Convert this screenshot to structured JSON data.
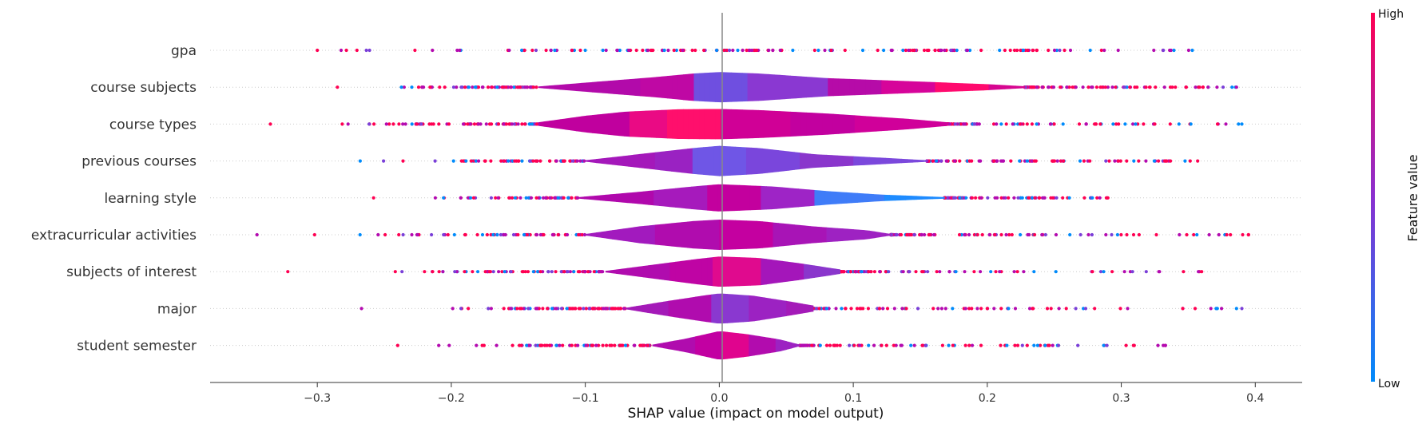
{
  "chart_data": {
    "type": "violin",
    "xlabel": "SHAP value (impact on model output)",
    "xlim": [
      -0.38,
      0.435
    ],
    "xticks": [
      -0.3,
      -0.2,
      -0.1,
      0.0,
      0.1,
      0.2,
      0.3,
      0.4
    ],
    "xtick_labels": [
      "−0.3",
      "−0.2",
      "−0.1",
      "0.0",
      "0.1",
      "0.2",
      "0.3",
      "0.4"
    ],
    "grid": false,
    "colorbar": {
      "title": "Feature value",
      "high_label": "High",
      "low_label": "Low",
      "high_color": "#ff0052",
      "low_color": "#008bfb"
    },
    "features": [
      {
        "name": "gpa",
        "range": [
          -0.3,
          0.353
        ],
        "density": [],
        "colors": []
      },
      {
        "name": "course subjects",
        "range": [
          -0.285,
          0.386
        ],
        "density": [
          [
            -0.135,
            0.05
          ],
          [
            -0.1,
            0.3
          ],
          [
            -0.05,
            0.65
          ],
          [
            -0.02,
            0.9
          ],
          [
            0.0,
            1.0
          ],
          [
            0.03,
            0.9
          ],
          [
            0.08,
            0.6
          ],
          [
            0.14,
            0.4
          ],
          [
            0.2,
            0.2
          ],
          [
            0.228,
            0.06
          ]
        ],
        "colors": [
          [
            -0.135,
            "#b20aaa"
          ],
          [
            -0.06,
            "#bf08a4"
          ],
          [
            -0.02,
            "#6f4fe0"
          ],
          [
            0.02,
            "#8a38d2"
          ],
          [
            0.08,
            "#b60ba8"
          ],
          [
            0.12,
            "#d6049a"
          ],
          [
            0.16,
            "#ff0a6e"
          ],
          [
            0.2,
            "#d60690"
          ],
          [
            0.228,
            "#b40cac"
          ]
        ]
      },
      {
        "name": "course types",
        "range": [
          -0.335,
          0.39
        ],
        "density": [
          [
            -0.135,
            0.12
          ],
          [
            -0.1,
            0.55
          ],
          [
            -0.07,
            0.82
          ],
          [
            -0.03,
            0.98
          ],
          [
            0.0,
            1.0
          ],
          [
            0.03,
            0.92
          ],
          [
            0.08,
            0.7
          ],
          [
            0.14,
            0.35
          ],
          [
            0.17,
            0.12
          ]
        ],
        "colors": [
          [
            -0.135,
            "#c0009e"
          ],
          [
            -0.07,
            "#ea0a84"
          ],
          [
            -0.04,
            "#ff0f6c"
          ],
          [
            0.0,
            "#d00096"
          ],
          [
            0.05,
            "#c2009f"
          ],
          [
            0.1,
            "#d0009a"
          ],
          [
            0.17,
            "#c4009c"
          ]
        ]
      },
      {
        "name": "previous courses",
        "range": [
          -0.268,
          0.357
        ],
        "density": [
          [
            -0.1,
            0.05
          ],
          [
            -0.06,
            0.45
          ],
          [
            -0.02,
            0.85
          ],
          [
            0.0,
            1.0
          ],
          [
            0.03,
            0.85
          ],
          [
            0.07,
            0.45
          ],
          [
            0.12,
            0.22
          ],
          [
            0.155,
            0.05
          ]
        ],
        "colors": [
          [
            -0.1,
            "#a418ba"
          ],
          [
            -0.05,
            "#9a22c2"
          ],
          [
            -0.02,
            "#6f56e6"
          ],
          [
            0.02,
            "#7a46dc"
          ],
          [
            0.06,
            "#8a36cc"
          ],
          [
            0.1,
            "#7b48dc"
          ],
          [
            0.155,
            "#7c46da"
          ]
        ]
      },
      {
        "name": "learning style",
        "range": [
          -0.258,
          0.29
        ],
        "density": [
          [
            -0.105,
            0.05
          ],
          [
            -0.06,
            0.4
          ],
          [
            -0.02,
            0.75
          ],
          [
            0.0,
            0.9
          ],
          [
            0.04,
            0.75
          ],
          [
            0.08,
            0.45
          ],
          [
            0.12,
            0.22
          ],
          [
            0.168,
            0.05
          ]
        ],
        "colors": [
          [
            -0.105,
            "#b008ac"
          ],
          [
            -0.05,
            "#a61abc"
          ],
          [
            -0.01,
            "#c3009e"
          ],
          [
            0.03,
            "#9e24c6"
          ],
          [
            0.07,
            "#3f7cf8"
          ],
          [
            0.12,
            "#1e8bff"
          ],
          [
            0.168,
            "#4b6ff0"
          ]
        ]
      },
      {
        "name": "extracurricular activities",
        "range": [
          -0.345,
          0.395
        ],
        "density": [
          [
            -0.1,
            0.05
          ],
          [
            -0.06,
            0.55
          ],
          [
            -0.02,
            0.9
          ],
          [
            0.0,
            1.0
          ],
          [
            0.03,
            0.9
          ],
          [
            0.07,
            0.55
          ],
          [
            0.11,
            0.3
          ],
          [
            0.128,
            0.05
          ]
        ],
        "colors": [
          [
            -0.1,
            "#a21abe"
          ],
          [
            -0.05,
            "#b00cae"
          ],
          [
            0.0,
            "#c400a0"
          ],
          [
            0.04,
            "#a814b6"
          ],
          [
            0.08,
            "#9e22c2"
          ],
          [
            0.128,
            "#a01cc0"
          ]
        ]
      },
      {
        "name": "subjects of interest",
        "range": [
          -0.322,
          0.36
        ],
        "density": [
          [
            -0.085,
            0.05
          ],
          [
            -0.05,
            0.45
          ],
          [
            -0.02,
            0.8
          ],
          [
            0.0,
            1.0
          ],
          [
            0.03,
            0.9
          ],
          [
            0.06,
            0.55
          ],
          [
            0.09,
            0.15
          ]
        ],
        "colors": [
          [
            -0.085,
            "#b00cae"
          ],
          [
            -0.04,
            "#bf04a4"
          ],
          [
            -0.005,
            "#e00a8e"
          ],
          [
            0.03,
            "#a416ba"
          ],
          [
            0.06,
            "#8a36cc"
          ],
          [
            0.09,
            "#a41ab6"
          ]
        ]
      },
      {
        "name": "major",
        "range": [
          -0.267,
          0.39
        ],
        "density": [
          [
            -0.07,
            0.05
          ],
          [
            -0.035,
            0.55
          ],
          [
            -0.01,
            0.88
          ],
          [
            0.0,
            1.0
          ],
          [
            0.025,
            0.85
          ],
          [
            0.05,
            0.5
          ],
          [
            0.07,
            0.2
          ]
        ],
        "colors": [
          [
            -0.07,
            "#a41ab8"
          ],
          [
            -0.04,
            "#b00cae"
          ],
          [
            -0.008,
            "#8a38d0"
          ],
          [
            0.02,
            "#9c22c2"
          ],
          [
            0.05,
            "#a41ab8"
          ],
          [
            0.07,
            "#a618b6"
          ]
        ]
      },
      {
        "name": "student semester",
        "range": [
          -0.24,
          0.333
        ],
        "density": [
          [
            -0.05,
            0.05
          ],
          [
            -0.025,
            0.45
          ],
          [
            -0.01,
            0.75
          ],
          [
            0.0,
            0.95
          ],
          [
            0.02,
            0.75
          ],
          [
            0.045,
            0.4
          ],
          [
            0.06,
            0.05
          ]
        ],
        "colors": [
          [
            -0.05,
            "#b00cae"
          ],
          [
            -0.02,
            "#c200a2"
          ],
          [
            0.0,
            "#e0048e"
          ],
          [
            0.02,
            "#b20cae"
          ],
          [
            0.04,
            "#9c22c2"
          ],
          [
            0.06,
            "#a21cbc"
          ]
        ]
      }
    ]
  }
}
